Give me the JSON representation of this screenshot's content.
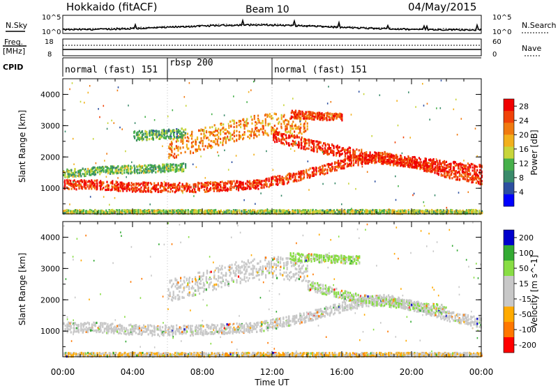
{
  "header": {
    "station": "Hokkaido (fitACF)",
    "beam": "Beam 10",
    "date": "04/May/2015"
  },
  "top_panels": {
    "nsky_label": "N.Sky",
    "nsky_ticks": [
      "10^5",
      "10^0"
    ],
    "nsearch_label": "N.Search",
    "nsearch_ticks": [
      "10^5",
      "10^0"
    ],
    "freq_label_1": "Freq.",
    "freq_label_2": "[MHz]",
    "freq_ticks": [
      "18",
      "8"
    ],
    "nave_label": "Nave",
    "nave_ticks": [
      "60",
      "0"
    ],
    "cpid_label": "CPID"
  },
  "modes": [
    {
      "label": "normal (fast) 151",
      "start_hour": 0,
      "end_hour": 6
    },
    {
      "label": "rbsp 200",
      "start_hour": 6,
      "end_hour": 12
    },
    {
      "label": "normal (fast) 151",
      "start_hour": 12,
      "end_hour": 24
    }
  ],
  "colors": {
    "power_scale": [
      "#0000ff",
      "#2c4fa0",
      "#3a8a6a",
      "#46b04a",
      "#c8d53a",
      "#f2b01c",
      "#f07a10",
      "#f04208",
      "#f00000"
    ],
    "velocity_scale": [
      "#ff0000",
      "#ff7700",
      "#ffaa00",
      "#c8c8c8",
      "#c8c8c8",
      "#88dd44",
      "#33aa33",
      "#0000cc"
    ]
  },
  "chart_data": [
    {
      "type": "heatmap",
      "title": "",
      "xlabel": "",
      "ylabel": "Slant Range [km]",
      "xlim": [
        0,
        24
      ],
      "ylim": [
        180,
        4500
      ],
      "x_ticks": [
        "00:00",
        "04:00",
        "08:00",
        "12:00",
        "16:00",
        "20:00",
        "00:00"
      ],
      "y_ticks": [
        "1000",
        "2000",
        "3000",
        "4000"
      ],
      "colorbar_label": "Power [dB]",
      "colorbar_ticks": [
        "4",
        "8",
        "12",
        "16",
        "20",
        "24",
        "28"
      ],
      "colorbar_range": [
        0,
        30
      ],
      "regions": [
        {
          "x": [
            0,
            24
          ],
          "center_km": [
            1150,
            1150,
            1080,
            1060,
            1050,
            1100,
            1150,
            1350,
            1600,
            1900,
            2050,
            1800,
            1500,
            1300
          ],
          "width_km": 300,
          "value": 26
        },
        {
          "x": [
            6,
            14
          ],
          "center_km": [
            2300,
            2600,
            2900,
            3100,
            2900
          ],
          "width_km": 700,
          "value": 21
        },
        {
          "x": [
            12,
            24
          ],
          "center_km": [
            2700,
            2300,
            2000,
            1800,
            1600
          ],
          "width_km": 350,
          "value": 27
        },
        {
          "x": [
            0,
            7
          ],
          "center_km": [
            1500,
            1600,
            1650,
            1700
          ],
          "width_km": 250,
          "value": 12
        },
        {
          "x": [
            4,
            7
          ],
          "center_km": [
            2700,
            2800
          ],
          "width_km": 300,
          "value": 11
        },
        {
          "x": [
            13,
            16
          ],
          "center_km": [
            3400,
            3300
          ],
          "width_km": 250,
          "value": 25
        },
        {
          "x": [
            0,
            24
          ],
          "center_km": [
            280,
            280
          ],
          "width_km": 120,
          "value": 14
        }
      ]
    },
    {
      "type": "heatmap",
      "title": "",
      "xlabel": "Time UT",
      "ylabel": "Slant Range [km]",
      "xlim": [
        0,
        24
      ],
      "ylim": [
        180,
        4500
      ],
      "x_ticks": [
        "00:00",
        "04:00",
        "08:00",
        "12:00",
        "16:00",
        "20:00",
        "00:00"
      ],
      "y_ticks": [
        "1000",
        "2000",
        "3000",
        "4000"
      ],
      "colorbar_label": "Velocity [m s^-1]",
      "colorbar_ticks": [
        "200",
        "100",
        "50",
        "15",
        "-15",
        "-50",
        "-100",
        "-200"
      ],
      "colorbar_range": [
        -250,
        250
      ],
      "regions": [
        {
          "x": [
            0,
            24
          ],
          "center_km": [
            1150,
            1150,
            1080,
            1060,
            1050,
            1100,
            1150,
            1350,
            1600,
            1900,
            2050,
            1800,
            1500,
            1300
          ],
          "width_km": 320,
          "value": 0
        },
        {
          "x": [
            6,
            14
          ],
          "center_km": [
            2300,
            2600,
            2900,
            3100,
            2900
          ],
          "width_km": 700,
          "value": 0
        },
        {
          "x": [
            14,
            22
          ],
          "center_km": [
            2500,
            2100,
            1900,
            1700
          ],
          "width_km": 300,
          "value": 60
        },
        {
          "x": [
            13,
            17
          ],
          "center_km": [
            3400,
            3300
          ],
          "width_km": 250,
          "value": 70
        },
        {
          "x": [
            0,
            24
          ],
          "center_km": [
            280,
            280
          ],
          "width_km": 120,
          "value": -60
        }
      ]
    }
  ]
}
